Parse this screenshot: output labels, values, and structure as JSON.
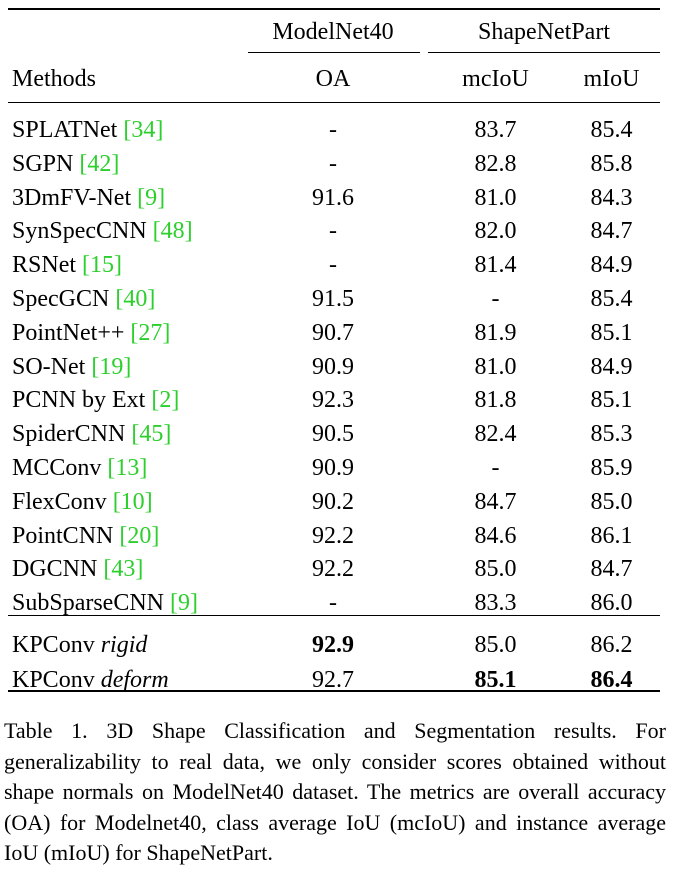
{
  "table": {
    "group_headers": {
      "modelnet40": "ModelNet40",
      "shapenetpart": "ShapeNetPart"
    },
    "col_headers": {
      "methods": "Methods",
      "oa": "OA",
      "mciou": "mcIoU",
      "miou": "mIoU"
    },
    "rows": [
      {
        "name": "SPLATNet",
        "ref": "[34]",
        "oa": "-",
        "mciou": "83.7",
        "miou": "85.4"
      },
      {
        "name": "SGPN",
        "ref": "[42]",
        "oa": "-",
        "mciou": "82.8",
        "miou": "85.8"
      },
      {
        "name": "3DmFV-Net",
        "ref": "[9]",
        "oa": "91.6",
        "mciou": "81.0",
        "miou": "84.3"
      },
      {
        "name": "SynSpecCNN",
        "ref": "[48]",
        "oa": "-",
        "mciou": "82.0",
        "miou": "84.7"
      },
      {
        "name": "RSNet",
        "ref": "[15]",
        "oa": "-",
        "mciou": "81.4",
        "miou": "84.9"
      },
      {
        "name": "SpecGCN",
        "ref": "[40]",
        "oa": "91.5",
        "mciou": "-",
        "miou": "85.4"
      },
      {
        "name": "PointNet++",
        "ref": "[27]",
        "oa": "90.7",
        "mciou": "81.9",
        "miou": "85.1"
      },
      {
        "name": "SO-Net",
        "ref": "[19]",
        "oa": "90.9",
        "mciou": "81.0",
        "miou": "84.9"
      },
      {
        "name": "PCNN by Ext",
        "ref": "[2]",
        "oa": "92.3",
        "mciou": "81.8",
        "miou": "85.1"
      },
      {
        "name": "SpiderCNN",
        "ref": "[45]",
        "oa": "90.5",
        "mciou": "82.4",
        "miou": "85.3"
      },
      {
        "name": "MCConv",
        "ref": "[13]",
        "oa": "90.9",
        "mciou": "-",
        "miou": "85.9"
      },
      {
        "name": "FlexConv",
        "ref": "[10]",
        "oa": "90.2",
        "mciou": "84.7",
        "miou": "85.0"
      },
      {
        "name": "PointCNN",
        "ref": "[20]",
        "oa": "92.2",
        "mciou": "84.6",
        "miou": "86.1"
      },
      {
        "name": "DGCNN",
        "ref": "[43]",
        "oa": "92.2",
        "mciou": "85.0",
        "miou": "84.7"
      },
      {
        "name": "SubSparseCNN",
        "ref": "[9]",
        "oa": "-",
        "mciou": "83.3",
        "miou": "86.0"
      }
    ],
    "kpconv_rows": [
      {
        "name": "KPConv",
        "variant": "rigid",
        "oa": "92.9",
        "mciou": "85.0",
        "miou": "86.2",
        "bold": [
          "oa"
        ]
      },
      {
        "name": "KPConv",
        "variant": "deform",
        "oa": "92.7",
        "mciou": "85.1",
        "miou": "86.4",
        "bold": [
          "mciou",
          "miou"
        ]
      }
    ]
  },
  "caption": "Table 1. 3D Shape Classification and Segmentation results. For generalizability to real data, we only consider scores obtained without shape normals on ModelNet40 dataset. The metrics are overall accuracy (OA) for Modelnet40, class average IoU (mcIoU) and instance average IoU (mIoU) for ShapeNetPart."
}
